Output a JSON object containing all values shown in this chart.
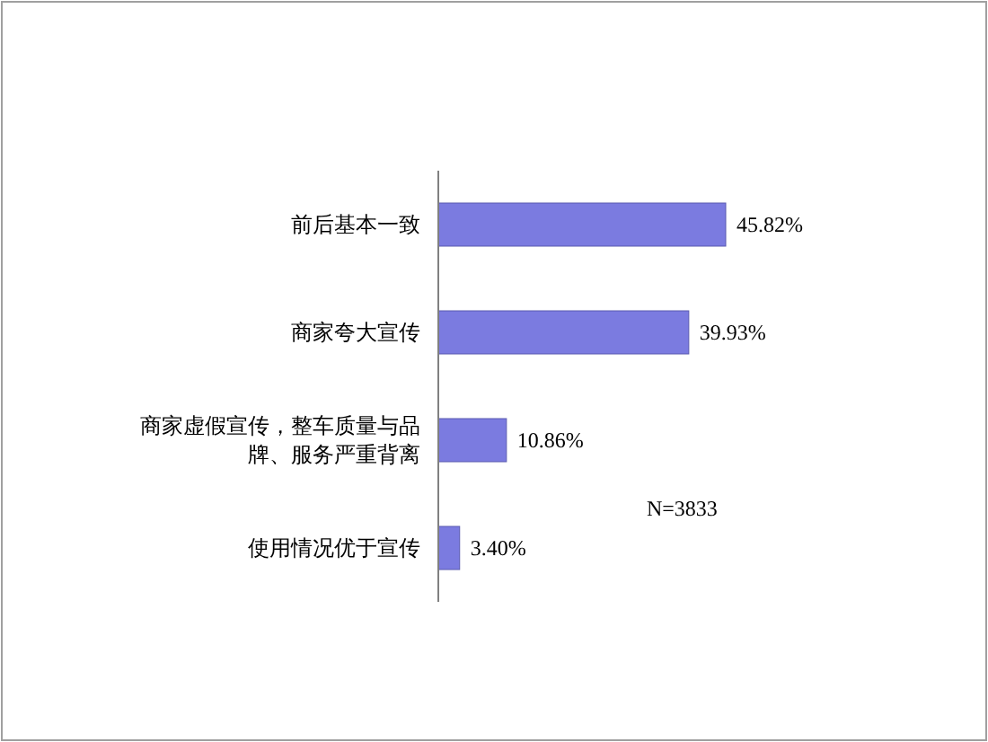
{
  "chart_data": {
    "type": "bar",
    "orientation": "horizontal",
    "categories": [
      "前后基本一致",
      "商家夸大宣传",
      "商家虚假宣传，整车质量与品牌、服务严重背离",
      "使用情况优于宣传"
    ],
    "values": [
      45.82,
      39.93,
      10.86,
      3.4
    ],
    "value_labels": [
      "45.82%",
      "39.93%",
      "10.86%",
      "3.40%"
    ],
    "color": "#7b7be0",
    "annotations": [
      "N=3833"
    ]
  }
}
